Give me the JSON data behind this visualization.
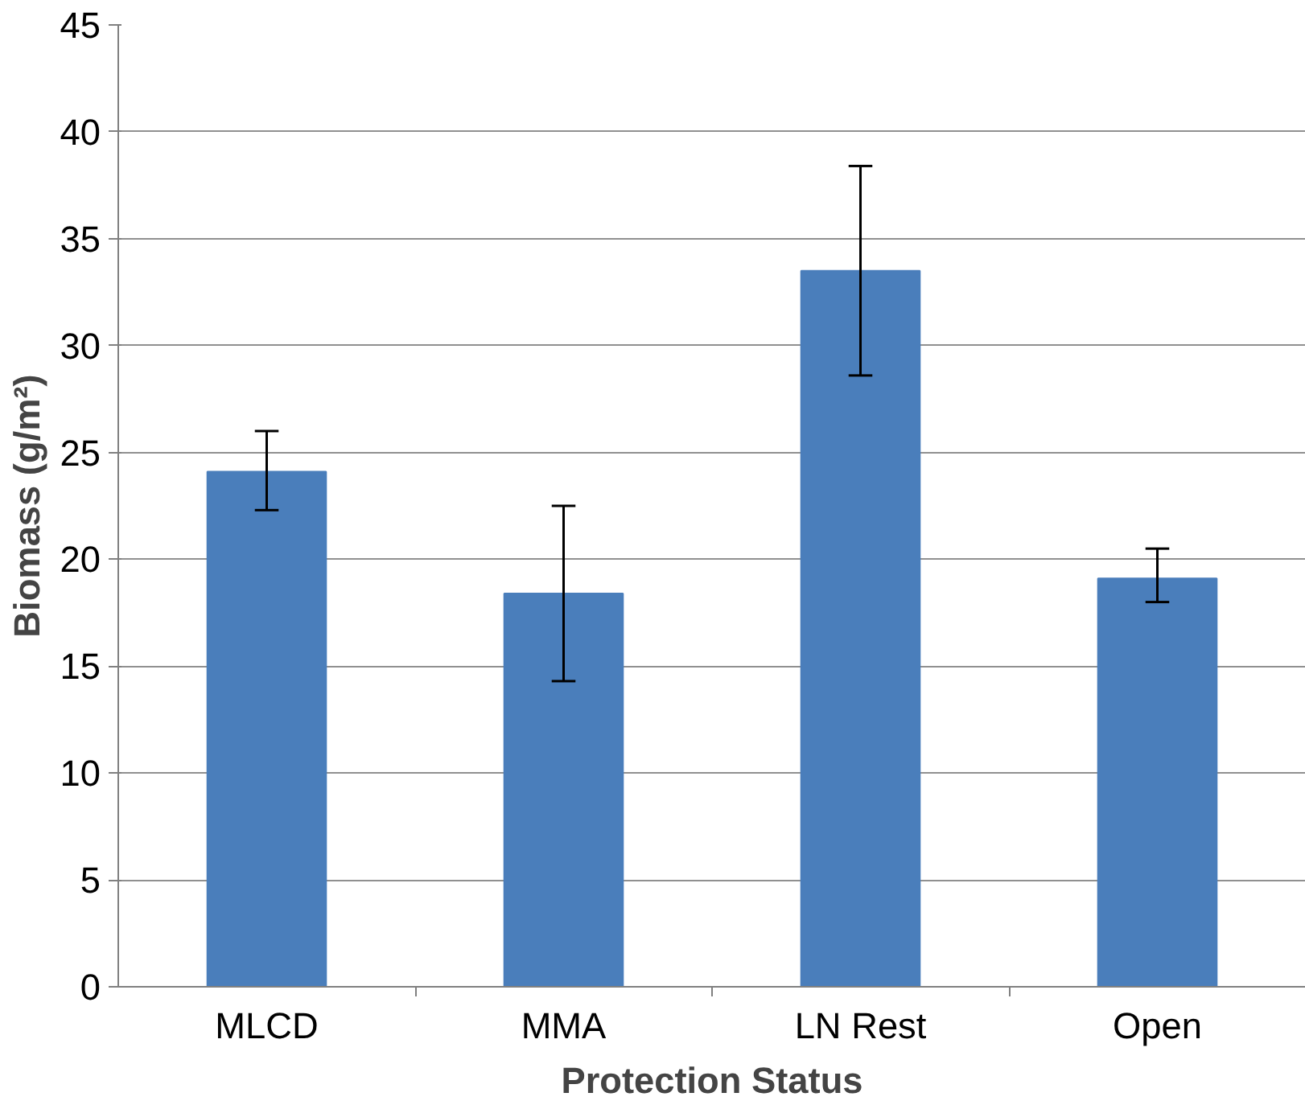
{
  "chart_data": {
    "type": "bar",
    "xlabel": "Protection Status",
    "ylabel": "Biomass (g/m²)",
    "categories": [
      "MLCD",
      "MMA",
      "LN Rest",
      "Open"
    ],
    "values": [
      24.1,
      18.4,
      33.5,
      19.1
    ],
    "errors": [
      [
        22.3,
        26.0
      ],
      [
        14.3,
        22.5
      ],
      [
        28.6,
        38.4
      ],
      [
        18.0,
        20.5
      ]
    ],
    "color": "#4a7ebb",
    "ylim": [
      0,
      45
    ],
    "yticks": [
      0,
      5,
      10,
      15,
      20,
      25,
      30,
      35,
      40,
      45
    ],
    "grid": "y"
  }
}
